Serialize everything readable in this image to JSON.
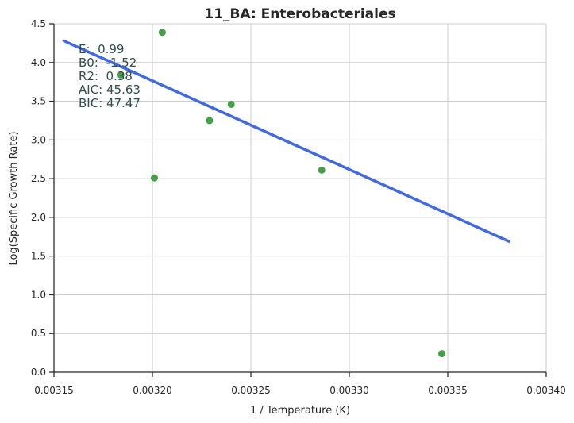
{
  "chart_data": {
    "type": "scatter",
    "title": "11_BA: Enterobacteriales",
    "xlabel": "1 / Temperature (K)",
    "ylabel": "Log(Specific Growth Rate)",
    "xlim": [
      0.00315,
      0.0034
    ],
    "ylim": [
      0.0,
      4.5
    ],
    "xticks": [
      "0.00315",
      "0.00320",
      "0.00325",
      "0.00330",
      "0.00335",
      "0.00340"
    ],
    "yticks": [
      "0.0",
      "0.5",
      "1.0",
      "1.5",
      "2.0",
      "2.5",
      "3.0",
      "3.5",
      "4.0",
      "4.5"
    ],
    "grid": true,
    "points": [
      {
        "x": 0.003184,
        "y": 3.84
      },
      {
        "x": 0.003201,
        "y": 2.51
      },
      {
        "x": 0.003205,
        "y": 4.39
      },
      {
        "x": 0.003229,
        "y": 3.25
      },
      {
        "x": 0.00324,
        "y": 3.46
      },
      {
        "x": 0.003286,
        "y": 2.61
      },
      {
        "x": 0.003347,
        "y": 0.24
      }
    ],
    "fit_line": {
      "x": [
        0.003155,
        0.003381
      ],
      "y": [
        4.28,
        1.69
      ]
    },
    "colors": {
      "points": "#43a047",
      "line": "#4169e1",
      "annotation": "#2f4f4f"
    },
    "annotations": [
      "E:  0.99",
      "B0:  -1.52",
      "R2:  0.38",
      "AIC: 45.63",
      "BIC: 47.47"
    ]
  }
}
